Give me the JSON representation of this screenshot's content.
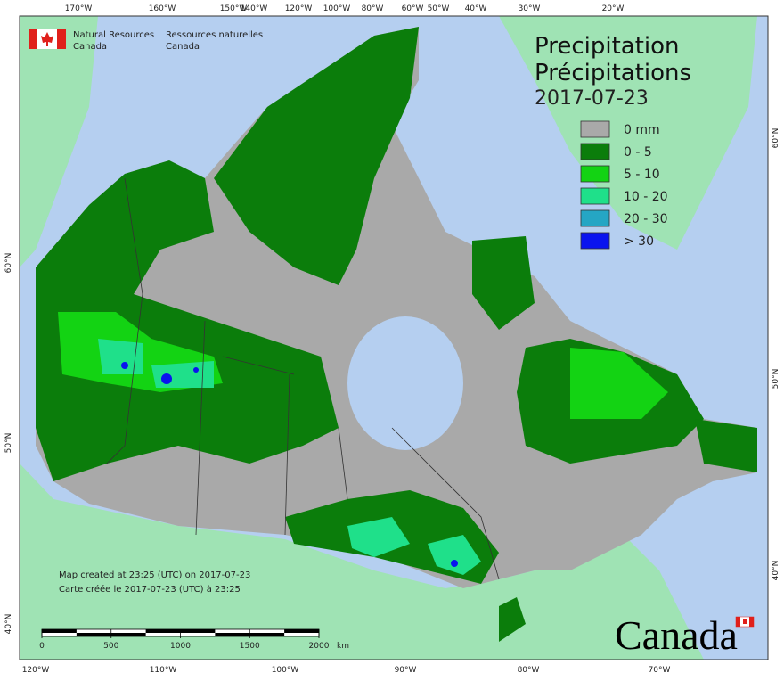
{
  "header": {
    "agency_en": [
      "Natural Resources",
      "Canada"
    ],
    "agency_fr": [
      "Ressources naturelles",
      "Canada"
    ]
  },
  "title": {
    "en": "Precipitation",
    "fr": "Précipitations",
    "date": "2017-07-23"
  },
  "legend": [
    {
      "label": "0 mm",
      "color": "#a9a9a9"
    },
    {
      "label": "0 - 5",
      "color": "#0b7d0b"
    },
    {
      "label": "5 - 10",
      "color": "#13d313"
    },
    {
      "label": "10 - 20",
      "color": "#1fe08a"
    },
    {
      "label": "20 - 30",
      "color": "#25a6c4"
    },
    {
      "label": "> 30",
      "color": "#0a14ee"
    }
  ],
  "graticule": {
    "top": [
      "170°W",
      "160°W",
      "150°W",
      "140°W",
      "120°W",
      "100°W",
      "80°W",
      "60°W",
      "50°W",
      "40°W",
      "30°W",
      "20°W"
    ],
    "bottom": [
      "120°W",
      "110°W",
      "100°W",
      "90°W",
      "80°W",
      "70°W"
    ],
    "left": [
      "60°N",
      "50°N",
      "40°N"
    ],
    "right": [
      "60°N",
      "50°N",
      "40°N"
    ]
  },
  "credits": [
    "Map created at 23:25 (UTC) on 2017-07-23",
    "Carte créée le 2017-07-23 (UTC) à 23:25"
  ],
  "scale": {
    "ticks": [
      0,
      500,
      1000,
      1500,
      2000
    ],
    "unit": "km"
  },
  "wordmark": "Canada"
}
